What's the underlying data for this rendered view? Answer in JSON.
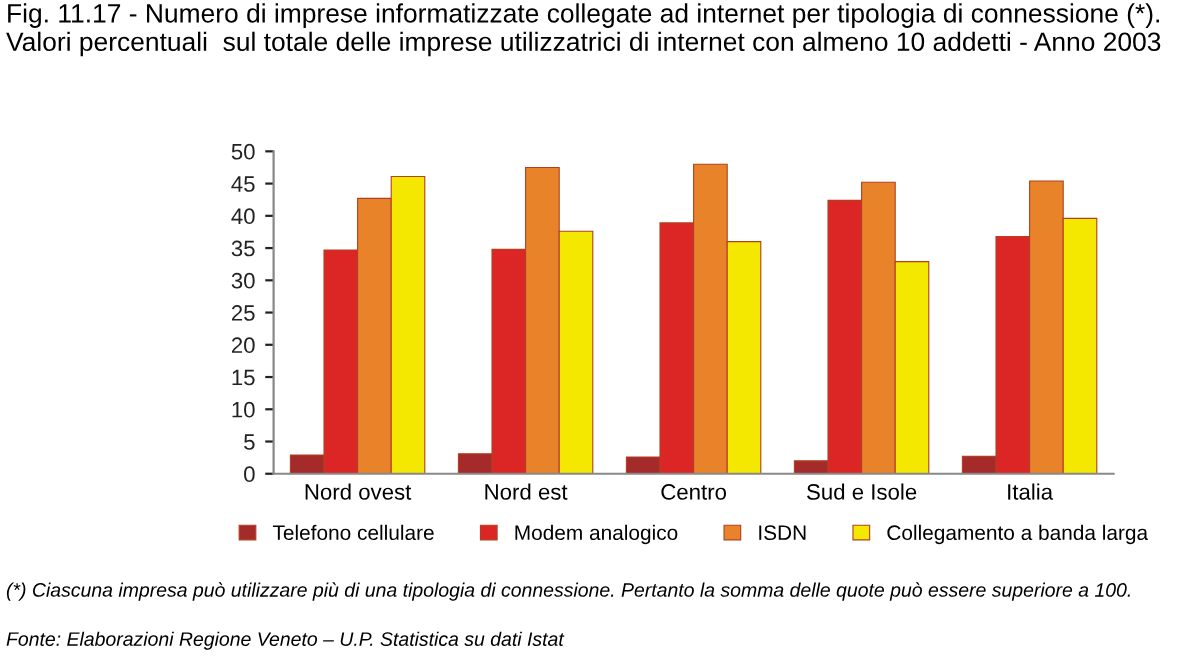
{
  "chart_data": {
    "type": "bar",
    "title": "Fig. 11.17 - Numero di imprese informatizzate collegate ad internet per tipologia di connessione (*).  Valori percentuali  sul totale delle imprese utilizzatrici di internet con almeno 10 addetti - Anno 2003",
    "categories": [
      "Nord ovest",
      "Nord est",
      "Centro",
      "Sud e Isole",
      "Italia"
    ],
    "series": [
      {
        "name": "Telefono cellulare",
        "color": "#a52a2a",
        "values": [
          2.9,
          3.1,
          2.6,
          2.0,
          2.7
        ]
      },
      {
        "name": "Modem analogico",
        "color": "#dc2626",
        "values": [
          34.7,
          34.8,
          38.9,
          42.4,
          36.8
        ]
      },
      {
        "name": "ISDN",
        "color": "#e8832a",
        "values": [
          42.7,
          47.5,
          48.0,
          45.2,
          45.4
        ]
      },
      {
        "name": "Collegamento a banda larga",
        "color": "#f5e800",
        "values": [
          46.1,
          37.6,
          36.0,
          32.9,
          39.6
        ]
      }
    ],
    "ylim": [
      0,
      50
    ],
    "yticks": [
      0,
      5,
      10,
      15,
      20,
      25,
      30,
      35,
      40,
      45,
      50
    ],
    "grid": false,
    "legend": "bottom",
    "annotations": [
      "(*) Ciascuna impresa può utilizzare più di una tipologia di connessione. Pertanto la somma delle quote può essere superiore a 100.",
      "Fonte: Elaborazioni Regione Veneto – U.P. Statistica su dati Istat"
    ]
  }
}
